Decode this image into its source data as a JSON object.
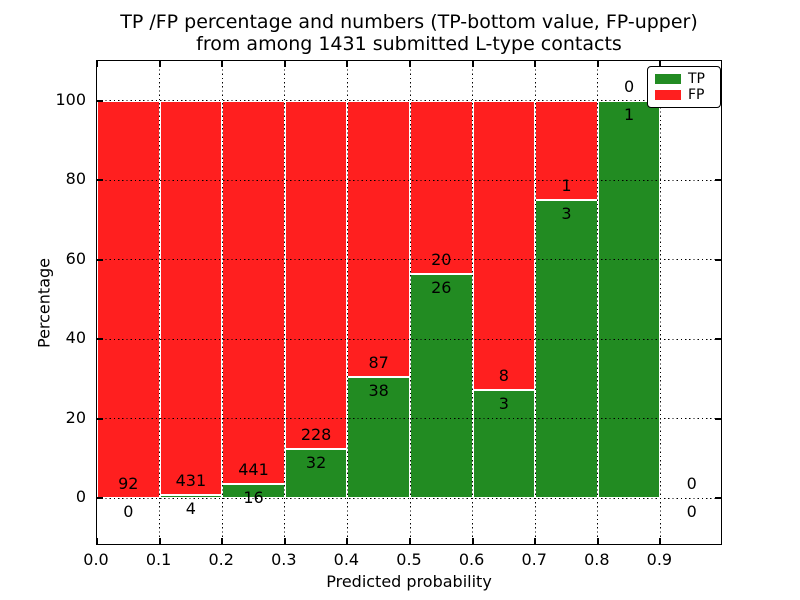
{
  "chart_data": {
    "type": "bar",
    "stacked": true,
    "title": "TP /FP percentage and numbers (TP-bottom value, FP-upper) from among 1431 submitted L-type contacts",
    "title_line1": "TP /FP percentage and numbers (TP-bottom value, FP-upper)",
    "title_line2": "from among 1431 submitted L-type contacts",
    "xlabel": "Predicted probability",
    "ylabel": "Percentage",
    "xlim": [
      0.0,
      1.0
    ],
    "ylim": [
      -12,
      110
    ],
    "x_tick_values": [
      0.0,
      0.1,
      0.2,
      0.3,
      0.4,
      0.5,
      0.6,
      0.7,
      0.8,
      0.9
    ],
    "x_tick_labels": [
      "0.0",
      "0.1",
      "0.2",
      "0.3",
      "0.4",
      "0.5",
      "0.6",
      "0.7",
      "0.8",
      "0.9"
    ],
    "y_ticks": [
      0,
      20,
      40,
      60,
      80,
      100
    ],
    "grid": true,
    "total_contacts": 1431,
    "series_colors": {
      "tp": "#228b22",
      "fp": "#ff1f1f"
    },
    "legend": {
      "position": "upper right",
      "entries": [
        {
          "label": "TP",
          "color_key": "tp"
        },
        {
          "label": "FP",
          "color_key": "fp"
        }
      ]
    },
    "bins": [
      {
        "x_start": 0.0,
        "x_end": 0.1,
        "tp": 0,
        "fp": 92,
        "tp_pct": 0.0,
        "fp_pct": 100.0
      },
      {
        "x_start": 0.1,
        "x_end": 0.2,
        "tp": 4,
        "fp": 431,
        "tp_pct": 0.92,
        "fp_pct": 99.08
      },
      {
        "x_start": 0.2,
        "x_end": 0.3,
        "tp": 16,
        "fp": 441,
        "tp_pct": 3.5,
        "fp_pct": 96.5
      },
      {
        "x_start": 0.3,
        "x_end": 0.4,
        "tp": 32,
        "fp": 228,
        "tp_pct": 12.31,
        "fp_pct": 87.69
      },
      {
        "x_start": 0.4,
        "x_end": 0.5,
        "tp": 38,
        "fp": 87,
        "tp_pct": 30.4,
        "fp_pct": 69.6
      },
      {
        "x_start": 0.5,
        "x_end": 0.6,
        "tp": 26,
        "fp": 20,
        "tp_pct": 56.52,
        "fp_pct": 43.48
      },
      {
        "x_start": 0.6,
        "x_end": 0.7,
        "tp": 3,
        "fp": 8,
        "tp_pct": 27.27,
        "fp_pct": 72.73
      },
      {
        "x_start": 0.7,
        "x_end": 0.8,
        "tp": 3,
        "fp": 1,
        "tp_pct": 75.0,
        "fp_pct": 25.0
      },
      {
        "x_start": 0.8,
        "x_end": 0.9,
        "tp": 1,
        "fp": 0,
        "tp_pct": 100.0,
        "fp_pct": 0.0
      },
      {
        "x_start": 0.9,
        "x_end": 1.0,
        "tp": 0,
        "fp": 0,
        "tp_pct": null,
        "fp_pct": null
      }
    ]
  }
}
